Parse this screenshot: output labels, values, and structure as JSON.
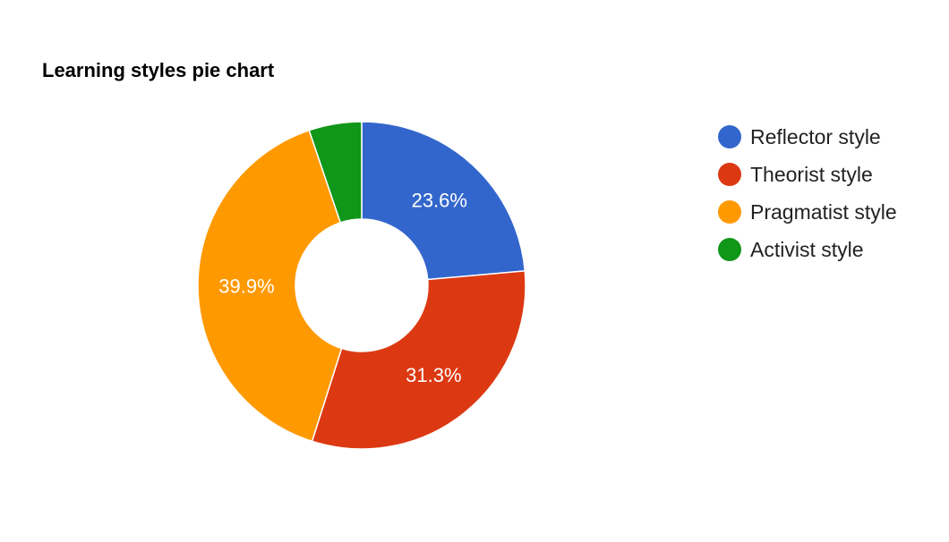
{
  "chart_data": {
    "type": "pie",
    "style": "donut",
    "title": "Learning styles pie chart",
    "categories": [
      "Reflector style",
      "Theorist style",
      "Pragmatist style",
      "Activist style"
    ],
    "values": [
      23.6,
      31.3,
      39.9,
      5.2
    ],
    "data_labels": [
      "23.6%",
      "31.3%",
      "39.9%",
      ""
    ],
    "colors": [
      "#3366cc",
      "#dc3912",
      "#ff9900",
      "#109618"
    ],
    "legend_position": "right"
  }
}
